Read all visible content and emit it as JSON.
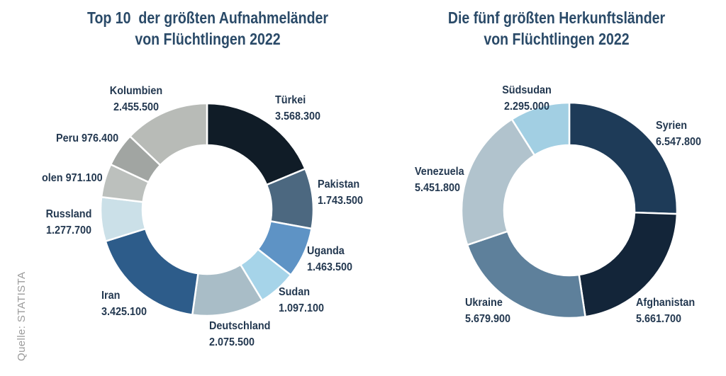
{
  "source_label": "Quelle: STATISTA",
  "colors": {
    "title_text": "#2a4a68",
    "label_text": "#233850",
    "source_text": "#9b9b9b",
    "segment_separator": "#ffffff"
  },
  "chart_data": [
    {
      "type": "donut",
      "title": "Top 10  der größten Aufnahmeländer\nvon Flüchtlingen 2022",
      "legend_position": "around-labels",
      "segments": [
        {
          "label": "Türkei",
          "value": 3568300,
          "display": "3.568.300",
          "color": "#101c27"
        },
        {
          "label": "Pakistan",
          "value": 1743500,
          "display": "1.743.500",
          "color": "#4c6880"
        },
        {
          "label": "Uganda",
          "value": 1463500,
          "display": "1.463.500",
          "color": "#5e93c5"
        },
        {
          "label": "Sudan",
          "value": 1097100,
          "display": "1.097.100",
          "color": "#a6d4e9"
        },
        {
          "label": "Deutschland",
          "value": 2075500,
          "display": "2.075.500",
          "color": "#a9bdc7"
        },
        {
          "label": "Iran",
          "value": 3425100,
          "display": "3.425.100",
          "color": "#2d5c8a"
        },
        {
          "label": "Russland",
          "value": 1277700,
          "display": "1.277.700",
          "color": "#cbe0e8"
        },
        {
          "label": "olen",
          "value": 971100,
          "display": "971.100",
          "color": "#bcc0bd"
        },
        {
          "label": "Peru",
          "value": 976400,
          "display": "976.400",
          "color": "#a1a5a2"
        },
        {
          "label": "Kolumbien",
          "value": 2455500,
          "display": "2.455.500",
          "color": "#b8bbb7"
        }
      ]
    },
    {
      "type": "donut",
      "title": "Die fünf größten Herkunftsländer\nvon Flüchtlingen 2022",
      "legend_position": "around-labels",
      "segments": [
        {
          "label": "Syrien",
          "value": 6547800,
          "display": "6.547.800",
          "color": "#1e3b58"
        },
        {
          "label": "Afghanistan",
          "value": 5661700,
          "display": "5.661.700",
          "color": "#132539"
        },
        {
          "label": "Ukraine",
          "value": 5679900,
          "display": "5.679.900",
          "color": "#5e809b"
        },
        {
          "label": "Venezuela",
          "value": 5451800,
          "display": "5.451.800",
          "color": "#b1c3cd"
        },
        {
          "label": "Südsudan",
          "value": 2295000,
          "display": "2.295.000",
          "color": "#a2cfe3"
        }
      ]
    }
  ]
}
